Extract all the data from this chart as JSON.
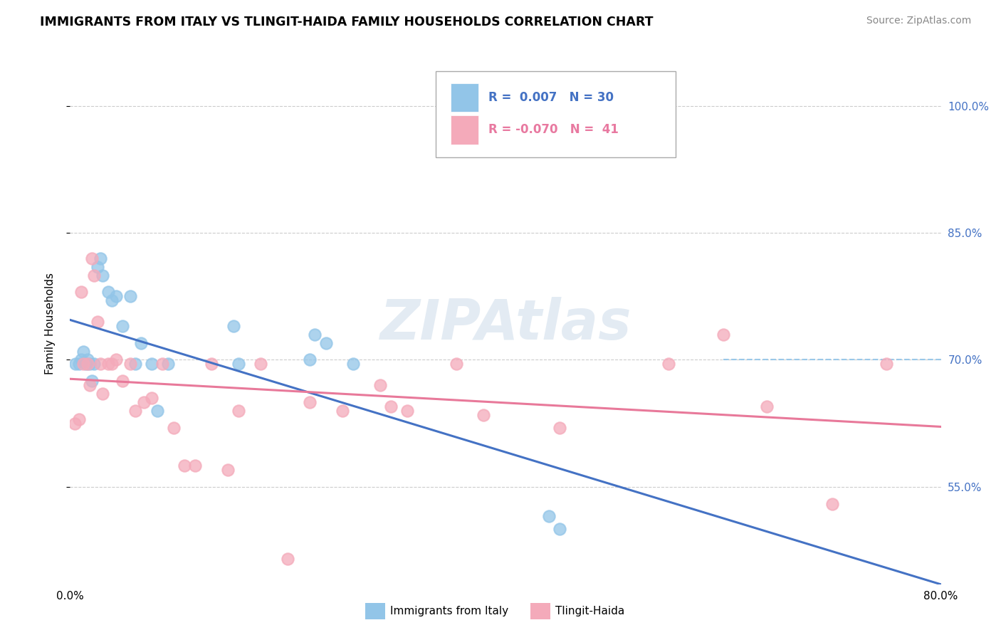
{
  "title": "IMMIGRANTS FROM ITALY VS TLINGIT-HAIDA FAMILY HOUSEHOLDS CORRELATION CHART",
  "source": "Source: ZipAtlas.com",
  "ylabel": "Family Households",
  "ytick_labels": [
    "55.0%",
    "70.0%",
    "85.0%",
    "100.0%"
  ],
  "ytick_values": [
    0.55,
    0.7,
    0.85,
    1.0
  ],
  "xmin": 0.0,
  "xmax": 0.8,
  "ymin": 0.435,
  "ymax": 1.05,
  "legend_r_blue": "0.007",
  "legend_n_blue": "30",
  "legend_r_pink": "-0.070",
  "legend_n_pink": "41",
  "blue_color": "#92C5E8",
  "pink_color": "#F4AABA",
  "line_blue": "#4472C4",
  "line_pink": "#E8799A",
  "blue_scatter_x": [
    0.005,
    0.008,
    0.01,
    0.012,
    0.015,
    0.016,
    0.018,
    0.02,
    0.022,
    0.025,
    0.028,
    0.03,
    0.035,
    0.038,
    0.042,
    0.048,
    0.055,
    0.06,
    0.065,
    0.075,
    0.08,
    0.09,
    0.15,
    0.155,
    0.22,
    0.225,
    0.235,
    0.26,
    0.44,
    0.45
  ],
  "blue_scatter_y": [
    0.695,
    0.695,
    0.7,
    0.71,
    0.695,
    0.7,
    0.695,
    0.675,
    0.695,
    0.81,
    0.82,
    0.8,
    0.78,
    0.77,
    0.775,
    0.74,
    0.775,
    0.695,
    0.72,
    0.695,
    0.64,
    0.695,
    0.74,
    0.695,
    0.7,
    0.73,
    0.72,
    0.695,
    0.515,
    0.5
  ],
  "pink_scatter_x": [
    0.004,
    0.008,
    0.01,
    0.012,
    0.016,
    0.018,
    0.02,
    0.022,
    0.025,
    0.028,
    0.03,
    0.035,
    0.038,
    0.042,
    0.048,
    0.055,
    0.06,
    0.068,
    0.075,
    0.085,
    0.095,
    0.105,
    0.115,
    0.13,
    0.145,
    0.155,
    0.175,
    0.2,
    0.22,
    0.25,
    0.285,
    0.295,
    0.31,
    0.355,
    0.38,
    0.45,
    0.55,
    0.6,
    0.64,
    0.7,
    0.75
  ],
  "pink_scatter_y": [
    0.625,
    0.63,
    0.78,
    0.695,
    0.695,
    0.67,
    0.82,
    0.8,
    0.745,
    0.695,
    0.66,
    0.695,
    0.695,
    0.7,
    0.675,
    0.695,
    0.64,
    0.65,
    0.655,
    0.695,
    0.62,
    0.575,
    0.575,
    0.695,
    0.57,
    0.64,
    0.695,
    0.465,
    0.65,
    0.64,
    0.67,
    0.645,
    0.64,
    0.695,
    0.635,
    0.62,
    0.695,
    0.73,
    0.645,
    0.53,
    0.695
  ],
  "dashed_line_y": 0.7,
  "dashed_xstart": 0.6,
  "blue_line_start_x": 0.0,
  "blue_line_end_x": 0.8,
  "pink_line_start_x": 0.0,
  "pink_line_end_x": 0.8
}
